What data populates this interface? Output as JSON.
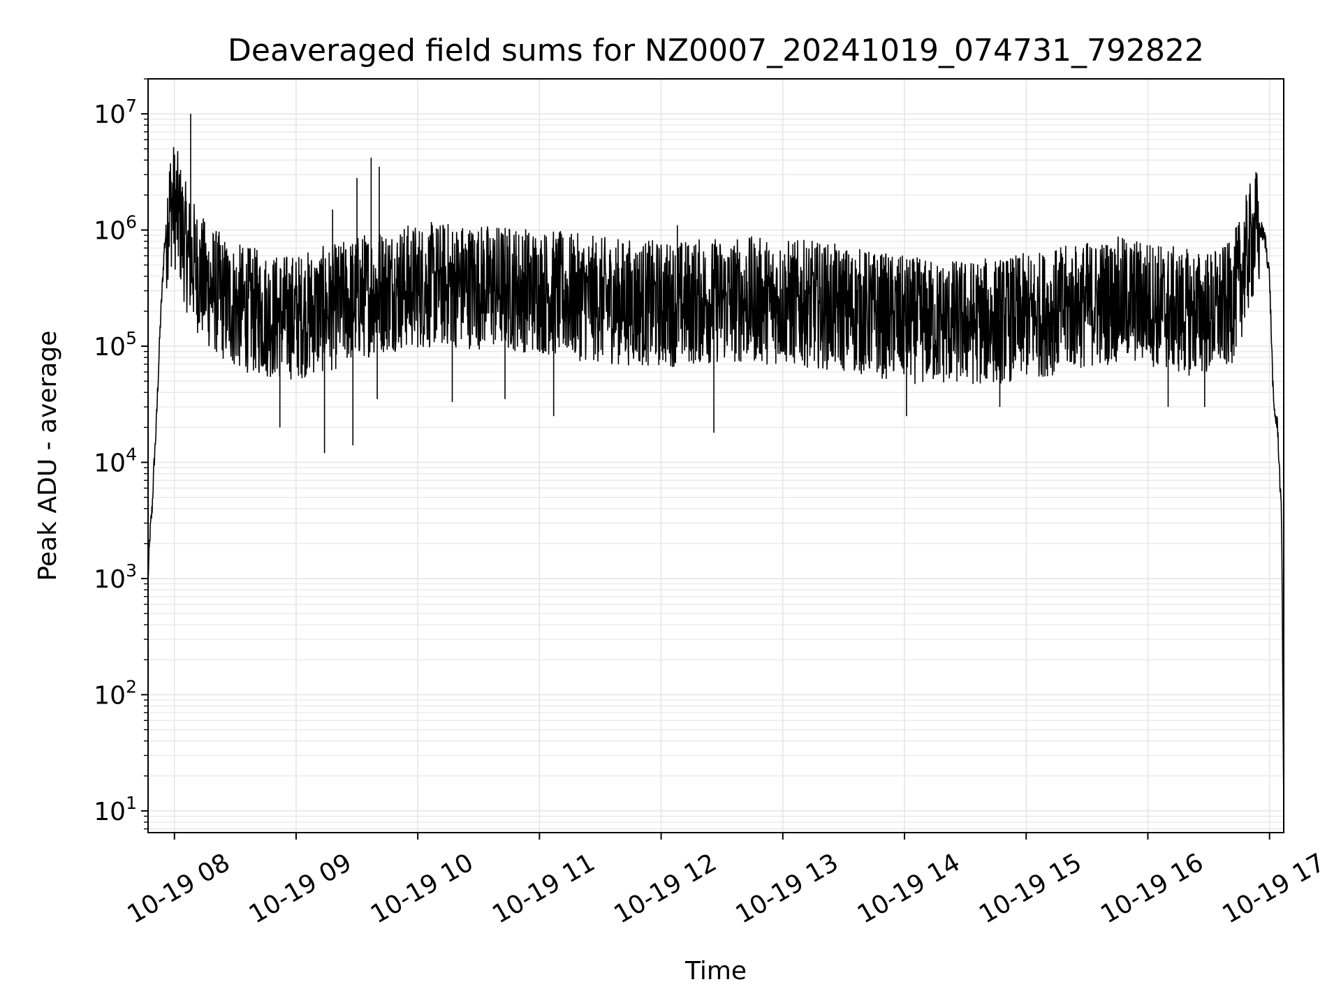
{
  "chart_data": {
    "type": "line",
    "title": "Deaveraged field sums for NZ0007_20241019_074731_792822",
    "xlabel": "Time",
    "ylabel": "Peak ADU - average",
    "yscale": "log",
    "grid": true,
    "series_color": "#000000",
    "grid_color": "#e6e6e6",
    "xlim": [
      "2024-10-19 07:47",
      "2024-10-19 17:07"
    ],
    "ylim": [
      6.5,
      20000000
    ],
    "x_ticks": [
      {
        "value": "2024-10-19 08:00",
        "label": "10-19 08"
      },
      {
        "value": "2024-10-19 09:00",
        "label": "10-19 09"
      },
      {
        "value": "2024-10-19 10:00",
        "label": "10-19 10"
      },
      {
        "value": "2024-10-19 11:00",
        "label": "10-19 11"
      },
      {
        "value": "2024-10-19 12:00",
        "label": "10-19 12"
      },
      {
        "value": "2024-10-19 13:00",
        "label": "10-19 13"
      },
      {
        "value": "2024-10-19 14:00",
        "label": "10-19 14"
      },
      {
        "value": "2024-10-19 15:00",
        "label": "10-19 15"
      },
      {
        "value": "2024-10-19 16:00",
        "label": "10-19 16"
      },
      {
        "value": "2024-10-19 17:00",
        "label": "10-19 17"
      }
    ],
    "y_ticks": [
      {
        "value": 10,
        "base": "10",
        "exp": "1"
      },
      {
        "value": 100,
        "base": "10",
        "exp": "2"
      },
      {
        "value": 1000,
        "base": "10",
        "exp": "3"
      },
      {
        "value": 10000,
        "base": "10",
        "exp": "4"
      },
      {
        "value": 100000,
        "base": "10",
        "exp": "5"
      },
      {
        "value": 1000000,
        "base": "10",
        "exp": "6"
      },
      {
        "value": 10000000,
        "base": "10",
        "exp": "7"
      }
    ],
    "series": [
      {
        "x": [
          "2024-10-19 07:47",
          "2024-10-19 07:48",
          "2024-10-19 07:49",
          "2024-10-19 07:50",
          "2024-10-19 07:51",
          "2024-10-19 07:53",
          "2024-10-19 07:55",
          "2024-10-19 07:57",
          "2024-10-19 07:59",
          "2024-10-19 08:01",
          "2024-10-19 08:03",
          "2024-10-19 08:05",
          "2024-10-19 08:07",
          "2024-10-19 08:10",
          "2024-10-19 08:15",
          "2024-10-19 08:20",
          "2024-10-19 08:25",
          "2024-10-19 08:30",
          "2024-10-19 08:40",
          "2024-10-19 08:50",
          "2024-10-19 09:00",
          "2024-10-19 09:10",
          "2024-10-19 09:20",
          "2024-10-19 09:30",
          "2024-10-19 09:40",
          "2024-10-19 09:50",
          "2024-10-19 10:00",
          "2024-10-19 10:15",
          "2024-10-19 10:30",
          "2024-10-19 10:45",
          "2024-10-19 11:00",
          "2024-10-19 11:15",
          "2024-10-19 11:30",
          "2024-10-19 11:45",
          "2024-10-19 12:00",
          "2024-10-19 12:15",
          "2024-10-19 12:30",
          "2024-10-19 12:45",
          "2024-10-19 13:00",
          "2024-10-19 13:15",
          "2024-10-19 13:30",
          "2024-10-19 13:45",
          "2024-10-19 14:00",
          "2024-10-19 14:15",
          "2024-10-19 14:30",
          "2024-10-19 14:45",
          "2024-10-19 15:00",
          "2024-10-19 15:15",
          "2024-10-19 15:30",
          "2024-10-19 15:45",
          "2024-10-19 16:00",
          "2024-10-19 16:15",
          "2024-10-19 16:30",
          "2024-10-19 16:40",
          "2024-10-19 16:45",
          "2024-10-19 16:50",
          "2024-10-19 16:53",
          "2024-10-19 16:56",
          "2024-10-19 16:58",
          "2024-10-19 17:00",
          "2024-10-19 17:02",
          "2024-10-19 17:04",
          "2024-10-19 17:06",
          "2024-10-19 17:07"
        ],
        "y": [
          1000,
          2500,
          4000,
          10000,
          20000,
          150000,
          700000,
          1400000,
          1700000,
          1500000,
          1100000,
          800000,
          600000,
          500000,
          350000,
          300000,
          250000,
          220000,
          200000,
          180000,
          180000,
          200000,
          220000,
          260000,
          300000,
          320000,
          330000,
          340000,
          330000,
          320000,
          300000,
          270000,
          250000,
          240000,
          230000,
          240000,
          250000,
          250000,
          240000,
          230000,
          210000,
          190000,
          170000,
          160000,
          160000,
          165000,
          180000,
          200000,
          230000,
          250000,
          240000,
          200000,
          190000,
          220000,
          350000,
          700000,
          950000,
          1000000,
          800000,
          400000,
          30000,
          20000,
          3000,
          10
        ]
      }
    ],
    "spikes": [
      {
        "x": "2024-10-19 08:08",
        "y": 10000000
      },
      {
        "x": "2024-10-19 09:18",
        "y": 1500000
      },
      {
        "x": "2024-10-19 09:30",
        "y": 2800000
      },
      {
        "x": "2024-10-19 09:37",
        "y": 4200000
      },
      {
        "x": "2024-10-19 09:41",
        "y": 3500000
      },
      {
        "x": "2024-10-19 12:08",
        "y": 1100000
      },
      {
        "x": "2024-10-19 16:54",
        "y": 1200000
      }
    ],
    "dips": [
      {
        "x": "2024-10-19 08:52",
        "y": 20000
      },
      {
        "x": "2024-10-19 09:14",
        "y": 12000
      },
      {
        "x": "2024-10-19 09:28",
        "y": 14000
      },
      {
        "x": "2024-10-19 09:40",
        "y": 35000
      },
      {
        "x": "2024-10-19 10:17",
        "y": 33000
      },
      {
        "x": "2024-10-19 10:43",
        "y": 35000
      },
      {
        "x": "2024-10-19 11:07",
        "y": 25000
      },
      {
        "x": "2024-10-19 12:26",
        "y": 18000
      },
      {
        "x": "2024-10-19 14:01",
        "y": 25000
      },
      {
        "x": "2024-10-19 14:47",
        "y": 30000
      },
      {
        "x": "2024-10-19 16:10",
        "y": 30000
      },
      {
        "x": "2024-10-19 16:28",
        "y": 30000
      }
    ]
  }
}
